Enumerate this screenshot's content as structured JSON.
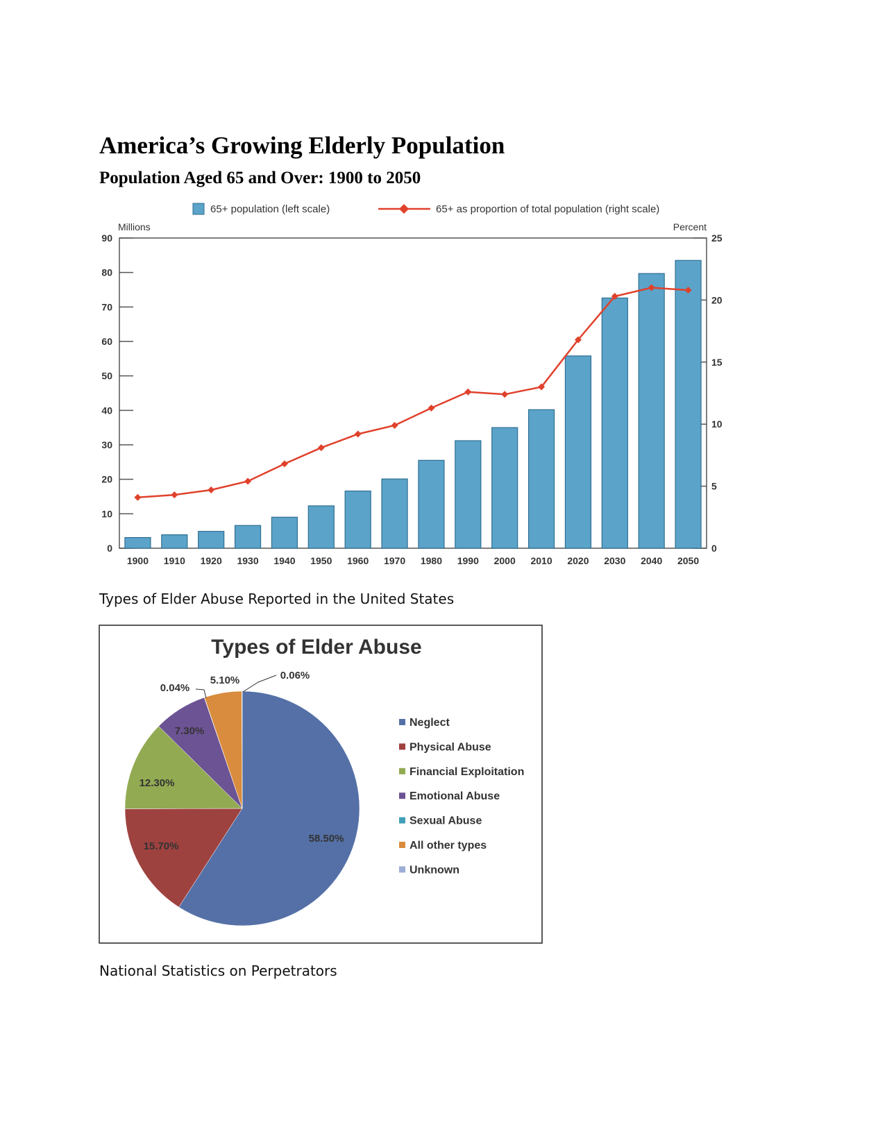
{
  "document": {
    "title": "America’s Growing Elderly Population",
    "subtitle": "Population Aged 65 and Over: 1900 to 2050",
    "caption_pie": "Types of Elder Abuse Reported in the United States",
    "caption_bottom": "National Statistics on Perpetrators"
  },
  "chart_data": [
    {
      "type": "bar+line",
      "categories": [
        "1900",
        "1910",
        "1920",
        "1930",
        "1940",
        "1950",
        "1960",
        "1970",
        "1980",
        "1990",
        "2000",
        "2010",
        "2020",
        "2030",
        "2040",
        "2050"
      ],
      "series": [
        {
          "name": "65+ population (left scale)",
          "type": "bar",
          "axis": "left",
          "color": "#5ba3c9",
          "values": [
            3.1,
            3.9,
            4.9,
            6.6,
            9.0,
            12.3,
            16.6,
            20.1,
            25.5,
            31.2,
            35.0,
            40.2,
            55.8,
            72.6,
            79.7,
            83.5
          ]
        },
        {
          "name": "65+ as proportion of total population (right scale)",
          "type": "line",
          "axis": "right",
          "color": "#e0412b",
          "values": [
            4.1,
            4.3,
            4.7,
            5.4,
            6.8,
            8.1,
            9.2,
            9.9,
            11.3,
            12.6,
            12.4,
            13.0,
            16.8,
            20.3,
            21.0,
            20.8
          ]
        }
      ],
      "left_axis": {
        "label": "Millions",
        "ylim": [
          0,
          90
        ],
        "ticks": [
          "0",
          "10",
          "20",
          "30",
          "40",
          "50",
          "60",
          "70",
          "80",
          "90"
        ]
      },
      "right_axis": {
        "label": "Percent",
        "ylim": [
          0,
          25
        ],
        "ticks": [
          "0",
          "5",
          "10",
          "15",
          "20",
          "25"
        ]
      },
      "legend": "top",
      "grid": false
    },
    {
      "type": "pie",
      "title": "Types of Elder Abuse",
      "slices": [
        {
          "name": "Neglect",
          "value": 58.5,
          "label": "58.50%",
          "color": "#5470a6"
        },
        {
          "name": "Physical Abuse",
          "value": 15.7,
          "label": "15.70%",
          "color": "#9e423f"
        },
        {
          "name": "Financial Exploitation",
          "value": 12.3,
          "label": "12.30%",
          "color": "#92aa52"
        },
        {
          "name": "Emotional Abuse",
          "value": 7.3,
          "label": "7.30%",
          "color": "#6c5393"
        },
        {
          "name": "Sexual Abuse",
          "value": 0.04,
          "label": "0.04%",
          "color": "#429fb8"
        },
        {
          "name": "All other types",
          "value": 5.1,
          "label": "5.10%",
          "color": "#d98c3d"
        },
        {
          "name": "Unknown",
          "value": 0.06,
          "label": "0.06%",
          "color": "#9caed6"
        }
      ],
      "legend": "right"
    }
  ]
}
